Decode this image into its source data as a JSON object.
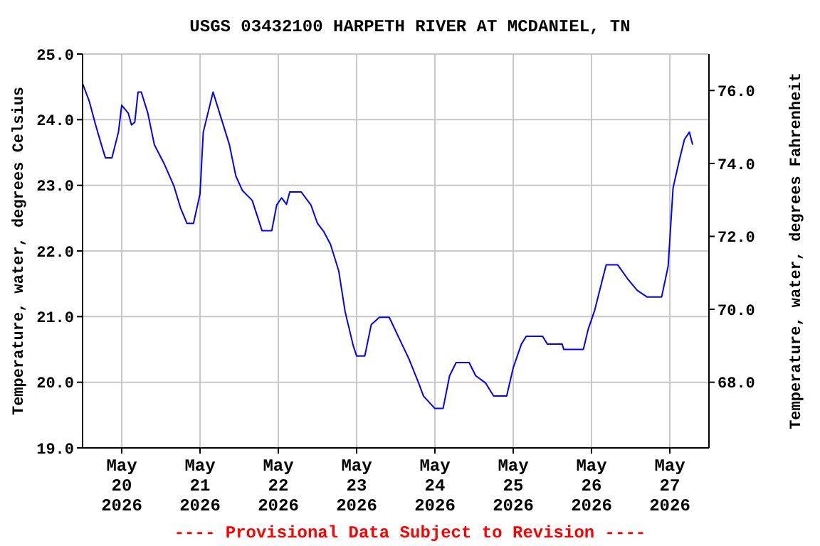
{
  "chart_data": {
    "type": "line",
    "title": "USGS 03432100 HARPETH RIVER AT MCDANIEL, TN",
    "ylabel": "Temperature, water, degrees Celsius",
    "y2label": "Temperature, water, degrees Fahrenheit",
    "annotations": [
      "---- Provisional Data Subject to Revision ----"
    ],
    "x": [
      "2026-05-19T12:00",
      "2026-05-19T14:00",
      "2026-05-19T16:00",
      "2026-05-19T18:00",
      "2026-05-19T19:00",
      "2026-05-19T21:00",
      "2026-05-19T23:00",
      "2026-05-20T00:00",
      "2026-05-20T02:00",
      "2026-05-20T03:00",
      "2026-05-20T04:00",
      "2026-05-20T05:00",
      "2026-05-20T06:00",
      "2026-05-20T08:00",
      "2026-05-20T10:00",
      "2026-05-20T13:00",
      "2026-05-20T16:00",
      "2026-05-20T18:00",
      "2026-05-20T20:00",
      "2026-05-20T22:00",
      "2026-05-21T00:00",
      "2026-05-21T01:00",
      "2026-05-21T04:00",
      "2026-05-21T06:00",
      "2026-05-21T09:00",
      "2026-05-21T11:00",
      "2026-05-21T13:00",
      "2026-05-21T16:00",
      "2026-05-21T19:00",
      "2026-05-21T22:00",
      "2026-05-21T23:30",
      "2026-05-22T01:00",
      "2026-05-22T02:30",
      "2026-05-22T03:30",
      "2026-05-22T07:00",
      "2026-05-22T10:00",
      "2026-05-22T12:00",
      "2026-05-22T14:00",
      "2026-05-22T16:00",
      "2026-05-22T18:30",
      "2026-05-22T20:30",
      "2026-05-22T23:00",
      "2026-05-23T00:00",
      "2026-05-23T02:30",
      "2026-05-23T04:30",
      "2026-05-23T07:00",
      "2026-05-23T10:00",
      "2026-05-23T13:30",
      "2026-05-23T16:00",
      "2026-05-23T19:00",
      "2026-05-23T20:30",
      "2026-05-24T00:00",
      "2026-05-24T02:30",
      "2026-05-24T04:30",
      "2026-05-24T06:30",
      "2026-05-24T10:30",
      "2026-05-24T12:30",
      "2026-05-24T15:30",
      "2026-05-24T18:00",
      "2026-05-24T22:00",
      "2026-05-25T00:00",
      "2026-05-25T02:30",
      "2026-05-25T04:00",
      "2026-05-25T09:00",
      "2026-05-25T10:30",
      "2026-05-25T15:00",
      "2026-05-25T15:30",
      "2026-05-25T21:30",
      "2026-05-25T23:00",
      "2026-05-26T01:00",
      "2026-05-26T02:30",
      "2026-05-26T04:30",
      "2026-05-26T08:00",
      "2026-05-26T11:00",
      "2026-05-26T14:00",
      "2026-05-26T17:00",
      "2026-05-26T21:30",
      "2026-05-26T23:30",
      "2026-05-27T01:00",
      "2026-05-27T03:00",
      "2026-05-27T04:30",
      "2026-05-27T06:00",
      "2026-05-27T07:00"
    ],
    "series": [
      {
        "color": "#0000ff",
        "values": [
          24.55,
          24.29,
          23.92,
          23.58,
          23.42,
          23.42,
          23.81,
          24.22,
          24.1,
          23.92,
          23.96,
          24.42,
          24.42,
          24.1,
          23.62,
          23.33,
          22.99,
          22.66,
          22.42,
          22.42,
          22.87,
          23.81,
          24.42,
          24.1,
          23.62,
          23.14,
          22.92,
          22.77,
          22.31,
          22.31,
          22.7,
          22.81,
          22.71,
          22.9,
          22.9,
          22.7,
          22.42,
          22.29,
          22.1,
          21.7,
          21.07,
          20.55,
          20.4,
          20.4,
          20.88,
          20.99,
          20.99,
          20.62,
          20.36,
          19.99,
          19.79,
          19.6,
          19.6,
          20.1,
          20.3,
          20.3,
          20.1,
          19.99,
          19.79,
          19.79,
          20.22,
          20.58,
          20.7,
          20.7,
          20.58,
          20.58,
          20.5,
          20.5,
          20.81,
          21.1,
          21.4,
          21.79,
          21.79,
          21.58,
          21.4,
          21.3,
          21.3,
          21.77,
          22.96,
          23.4,
          23.7,
          23.81,
          23.62
        ]
      }
    ],
    "xlim": [
      "2026-05-19T12:00",
      "2026-05-27T12:00"
    ],
    "xticks": [
      {
        "value": "2026-05-20",
        "label": "May 20 2026"
      },
      {
        "value": "2026-05-21",
        "label": "May 21 2026"
      },
      {
        "value": "2026-05-22",
        "label": "May 22 2026"
      },
      {
        "value": "2026-05-23",
        "label": "May 23 2026"
      },
      {
        "value": "2026-05-24",
        "label": "May 24 2026"
      },
      {
        "value": "2026-05-25",
        "label": "May 25 2026"
      },
      {
        "value": "2026-05-26",
        "label": "May 26 2026"
      },
      {
        "value": "2026-05-27",
        "label": "May 27 2026"
      }
    ],
    "ylim": [
      19,
      25
    ],
    "yticks": [
      {
        "value": 19,
        "label": "19.0"
      },
      {
        "value": 20,
        "label": "20.0"
      },
      {
        "value": 21,
        "label": "21.0"
      },
      {
        "value": 22,
        "label": "22.0"
      },
      {
        "value": 23,
        "label": "23.0"
      },
      {
        "value": 24,
        "label": "24.0"
      },
      {
        "value": 25,
        "label": "25.0"
      }
    ],
    "y2lim": [
      66.2,
      77
    ],
    "y2ticks": [
      {
        "value": 68,
        "label": "68.0"
      },
      {
        "value": 70,
        "label": "70.0"
      },
      {
        "value": 72,
        "label": "72.0"
      },
      {
        "value": 74,
        "label": "74.0"
      },
      {
        "value": 76,
        "label": "76.0"
      }
    ],
    "grid": true,
    "legend": false,
    "marker": "none",
    "line_style": "solid"
  }
}
